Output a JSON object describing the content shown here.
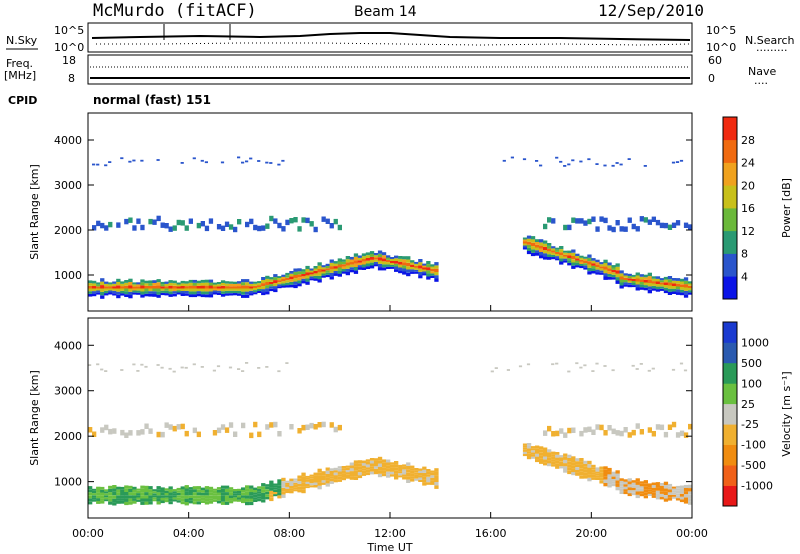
{
  "header": {
    "station": "McMurdo (fitACF)",
    "beam": "Beam 14",
    "date": "12/Sep/2010"
  },
  "strip_nsky": {
    "left_label": "N.Sky",
    "right_label": "N.Search",
    "right_legend": ".........",
    "left_ticks": [
      "10^5",
      "10^0"
    ],
    "right_ticks": [
      "10^5",
      "10^0"
    ]
  },
  "strip_freq": {
    "left_label_1": "Freq.",
    "left_label_2": "[MHz]",
    "left_ticks": [
      "18",
      "8"
    ],
    "right_label": "Nave",
    "right_legend": "....",
    "right_ticks": [
      "60",
      "0"
    ]
  },
  "cpid": {
    "label": "CPID",
    "value": "normal (fast) 151"
  },
  "chart_data": [
    {
      "type": "heatmap",
      "name": "power",
      "ylabel": "Slant Range [km]",
      "y_ticks": [
        "1000",
        "2000",
        "3000",
        "4000"
      ],
      "ylim": [
        200,
        4600
      ],
      "colorbar": {
        "label": "Power [dB]",
        "ticks": [
          "4",
          "8",
          "12",
          "16",
          "20",
          "24",
          "28"
        ],
        "colors": [
          "#0a14e6",
          "#2a55cc",
          "#2a9a73",
          "#6ab83a",
          "#c8c01a",
          "#f0a21e",
          "#f06a10",
          "#f02a10"
        ]
      }
    },
    {
      "type": "heatmap",
      "name": "velocity",
      "ylabel": "Slant Range [km]",
      "y_ticks": [
        "1000",
        "2000",
        "3000",
        "4000"
      ],
      "ylim": [
        200,
        4600
      ],
      "xlabel": "Time UT",
      "x_ticks": [
        "00:00",
        "04:00",
        "08:00",
        "12:00",
        "16:00",
        "20:00",
        "00:00"
      ],
      "colorbar": {
        "label": "Velocity",
        "unit": "[m s⁻¹]",
        "ticks": [
          "1000",
          "500",
          "100",
          "25",
          "-25",
          "-100",
          "-500",
          "-1000"
        ],
        "colors": [
          "#1a3ad0",
          "#2a5ab0",
          "#2a9a58",
          "#6ac040",
          "#c8c8c0",
          "#f0b030",
          "#f08c10",
          "#f06018",
          "#e81818"
        ]
      }
    }
  ]
}
